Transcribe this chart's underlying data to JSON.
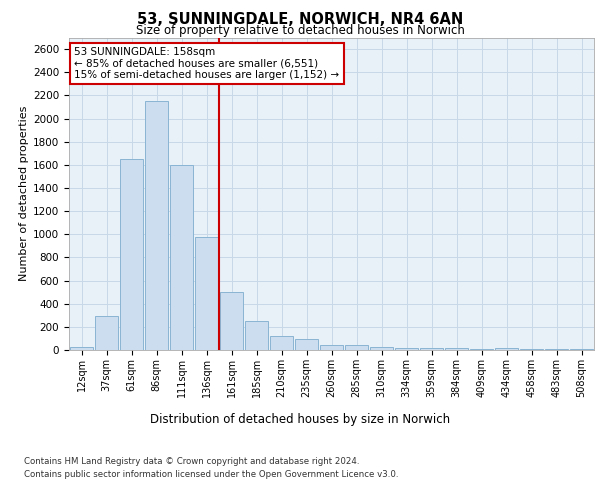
{
  "title": "53, SUNNINGDALE, NORWICH, NR4 6AN",
  "subtitle": "Size of property relative to detached houses in Norwich",
  "xlabel": "Distribution of detached houses by size in Norwich",
  "ylabel": "Number of detached properties",
  "categories": [
    "12sqm",
    "37sqm",
    "61sqm",
    "86sqm",
    "111sqm",
    "136sqm",
    "161sqm",
    "185sqm",
    "210sqm",
    "235sqm",
    "260sqm",
    "285sqm",
    "310sqm",
    "334sqm",
    "359sqm",
    "384sqm",
    "409sqm",
    "434sqm",
    "458sqm",
    "483sqm",
    "508sqm"
  ],
  "values": [
    25,
    295,
    1650,
    2150,
    1600,
    975,
    500,
    250,
    120,
    95,
    40,
    40,
    25,
    18,
    15,
    15,
    5,
    15,
    5,
    5,
    5
  ],
  "bar_color": "#ccddf0",
  "bar_edge_color": "#8ab4d4",
  "vline_x_idx": 6,
  "vline_color": "#cc0000",
  "annotation_text": "53 SUNNINGDALE: 158sqm\n← 85% of detached houses are smaller (6,551)\n15% of semi-detached houses are larger (1,152) →",
  "annotation_box_color": "#ffffff",
  "annotation_box_edge": "#cc0000",
  "ylim": [
    0,
    2700
  ],
  "yticks": [
    0,
    200,
    400,
    600,
    800,
    1000,
    1200,
    1400,
    1600,
    1800,
    2000,
    2200,
    2400,
    2600
  ],
  "grid_color": "#c8d8e8",
  "background_color": "#e8f0f8",
  "footer1": "Contains HM Land Registry data © Crown copyright and database right 2024.",
  "footer2": "Contains public sector information licensed under the Open Government Licence v3.0."
}
